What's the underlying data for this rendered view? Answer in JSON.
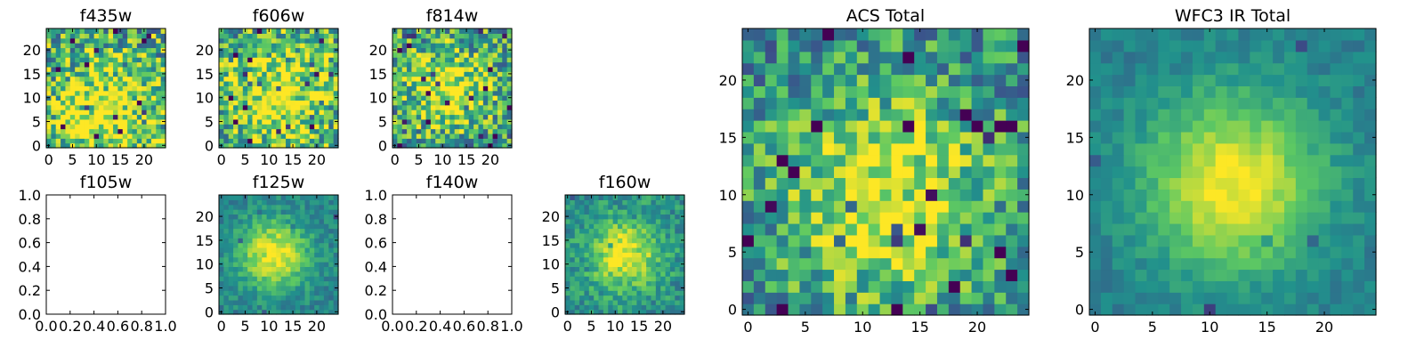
{
  "figure": {
    "background": "#ffffff",
    "colormap": "viridis",
    "colormap_stops": [
      "#440154",
      "#3b528b",
      "#21918c",
      "#5ec962",
      "#fde725"
    ]
  },
  "chart_data": [
    {
      "type": "heatmap",
      "title": "f435w",
      "grid_size": 25,
      "xlim": [
        0,
        24
      ],
      "ylim": [
        0,
        24
      ],
      "xticks": [
        0,
        5,
        10,
        15,
        20
      ],
      "yticks": [
        0,
        5,
        10,
        15,
        20
      ],
      "has_image": true,
      "peak": [
        12,
        6
      ],
      "peak_width": 8,
      "background_level": 0.6,
      "noise": 0.38,
      "seed": 11
    },
    {
      "type": "heatmap",
      "title": "f606w",
      "grid_size": 25,
      "xlim": [
        0,
        24
      ],
      "ylim": [
        0,
        24
      ],
      "xticks": [
        0,
        5,
        10,
        15,
        20
      ],
      "yticks": [
        0,
        5,
        10,
        15,
        20
      ],
      "has_image": true,
      "peak": [
        12,
        10
      ],
      "peak_width": 7,
      "background_level": 0.62,
      "noise": 0.36,
      "seed": 23
    },
    {
      "type": "heatmap",
      "title": "f814w",
      "grid_size": 25,
      "xlim": [
        0,
        24
      ],
      "ylim": [
        0,
        24
      ],
      "xticks": [
        0,
        5,
        10,
        15,
        20
      ],
      "yticks": [
        0,
        5,
        10,
        15,
        20
      ],
      "has_image": true,
      "peak": [
        11,
        12
      ],
      "peak_width": 6,
      "background_level": 0.55,
      "noise": 0.36,
      "seed": 37
    },
    {
      "type": "heatmap",
      "title": "f105w",
      "xlim": [
        0.0,
        1.0
      ],
      "ylim": [
        0.0,
        1.0
      ],
      "xticks": [
        "0.0",
        "0.2",
        "0.4",
        "0.6",
        "0.8",
        "1.0"
      ],
      "yticks": [
        "0.0",
        "0.2",
        "0.4",
        "0.6",
        "0.8",
        "1.0"
      ],
      "has_image": false
    },
    {
      "type": "heatmap",
      "title": "f125w",
      "grid_size": 25,
      "xlim": [
        0,
        24
      ],
      "ylim": [
        0,
        24
      ],
      "xticks": [
        0,
        5,
        10,
        15,
        20
      ],
      "yticks": [
        0,
        5,
        10,
        15,
        20
      ],
      "has_image": true,
      "peak": [
        11,
        12
      ],
      "peak_width": 5,
      "background_level": 0.45,
      "noise": 0.12,
      "seed": 41
    },
    {
      "type": "heatmap",
      "title": "f140w",
      "xlim": [
        0.0,
        1.0
      ],
      "ylim": [
        0.0,
        1.0
      ],
      "xticks": [
        "0.0",
        "0.2",
        "0.4",
        "0.6",
        "0.8",
        "1.0"
      ],
      "yticks": [
        "0.0",
        "0.2",
        "0.4",
        "0.6",
        "0.8",
        "1.0"
      ],
      "has_image": false
    },
    {
      "type": "heatmap",
      "title": "f160w",
      "grid_size": 25,
      "xlim": [
        0,
        24
      ],
      "ylim": [
        0,
        24
      ],
      "xticks": [
        0,
        5,
        10,
        15,
        20
      ],
      "yticks": [
        0,
        5,
        10,
        15,
        20
      ],
      "has_image": true,
      "peak": [
        12,
        12
      ],
      "peak_width": 5,
      "background_level": 0.5,
      "noise": 0.16,
      "seed": 53
    },
    {
      "type": "heatmap",
      "title": "ACS Total",
      "grid_size": 25,
      "xlim": [
        0,
        24
      ],
      "ylim": [
        0,
        24
      ],
      "xticks": [
        0,
        5,
        10,
        15,
        20
      ],
      "yticks": [
        0,
        5,
        10,
        15,
        20
      ],
      "has_image": true,
      "peak": [
        12,
        10
      ],
      "peak_width": 6,
      "background_level": 0.5,
      "noise": 0.28,
      "seed": 67
    },
    {
      "type": "heatmap",
      "title": "WFC3 IR Total",
      "grid_size": 25,
      "xlim": [
        0,
        24
      ],
      "ylim": [
        0,
        24
      ],
      "xticks": [
        0,
        5,
        10,
        15,
        20
      ],
      "yticks": [
        0,
        5,
        10,
        15,
        20
      ],
      "has_image": true,
      "peak": [
        12,
        11
      ],
      "peak_width": 5.5,
      "background_level": 0.42,
      "noise": 0.08,
      "seed": 79
    }
  ]
}
